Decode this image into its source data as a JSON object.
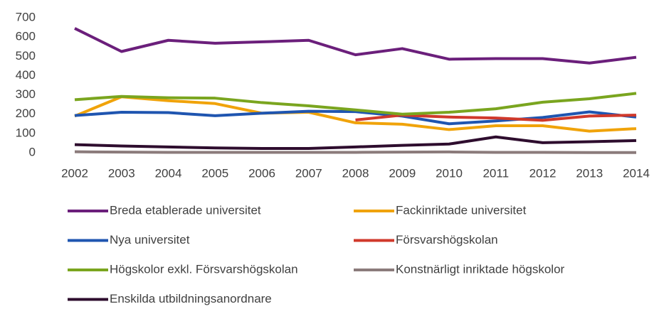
{
  "chart_data": {
    "type": "line",
    "x": [
      2002,
      2003,
      2004,
      2005,
      2006,
      2007,
      2008,
      2009,
      2010,
      2011,
      2012,
      2013,
      2014
    ],
    "ylim": [
      0,
      700
    ],
    "yticks": [
      0,
      100,
      200,
      300,
      400,
      500,
      600,
      700
    ],
    "series": [
      {
        "name": "Breda etablerade universitet",
        "color": "#6b1f7b",
        "values": [
          645,
          525,
          583,
          568,
          575,
          583,
          508,
          540,
          485,
          488,
          488,
          465,
          495
        ]
      },
      {
        "name": "Fackinriktade universitet",
        "color": "#f0a30a",
        "values": [
          190,
          290,
          270,
          255,
          205,
          210,
          155,
          148,
          120,
          140,
          140,
          112,
          125
        ]
      },
      {
        "name": "Nya universitet",
        "color": "#1f55b0",
        "values": [
          193,
          210,
          208,
          192,
          205,
          215,
          213,
          190,
          150,
          165,
          183,
          212,
          185
        ]
      },
      {
        "name": "Försvarshögskolan",
        "color": "#d0392b",
        "values": [
          null,
          null,
          null,
          null,
          null,
          null,
          170,
          195,
          185,
          180,
          168,
          190,
          195
        ]
      },
      {
        "name": "Högskolor exkl. Försvarshögskolan",
        "color": "#7aa51f",
        "values": [
          275,
          292,
          285,
          283,
          260,
          243,
          222,
          200,
          210,
          228,
          262,
          280,
          308
        ]
      },
      {
        "name": "Konstnärligt inriktade högskolor",
        "color": "#8b7b7b",
        "values": [
          5,
          3,
          2,
          2,
          2,
          2,
          2,
          3,
          4,
          2,
          2,
          1,
          1
        ]
      },
      {
        "name": "Enskilda utbildningsanordnare",
        "color": "#2e0d2e",
        "values": [
          42,
          35,
          30,
          25,
          22,
          22,
          30,
          38,
          45,
          82,
          52,
          57,
          63
        ]
      }
    ]
  }
}
